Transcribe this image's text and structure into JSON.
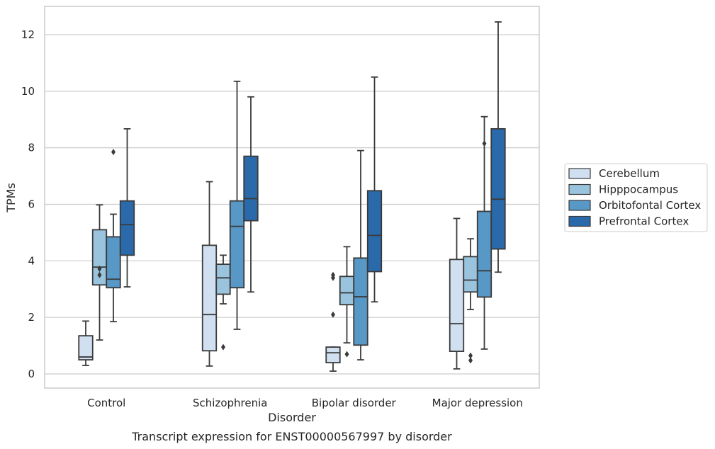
{
  "chart_data": {
    "type": "box",
    "title": "",
    "caption": "Transcript expression for ENST00000567997 by disorder",
    "xlabel": "Disorder",
    "ylabel": "TPMs",
    "ylim": [
      -0.5,
      13.0
    ],
    "yticks": [
      0,
      2,
      4,
      6,
      8,
      10,
      12
    ],
    "grid": "horizontal",
    "legend_position": "right",
    "categories": [
      "Control",
      "Schizophrenia",
      "Bipolar disorder",
      "Major depression"
    ],
    "series": [
      {
        "name": "Cerebellum",
        "color": "#d0e0f0",
        "boxes": [
          {
            "whisker_low": 0.3,
            "q1": 0.5,
            "median": 0.6,
            "q3": 1.35,
            "whisker_high": 1.87,
            "outliers": []
          },
          {
            "whisker_low": 0.28,
            "q1": 0.82,
            "median": 2.1,
            "q3": 4.55,
            "whisker_high": 6.8,
            "outliers": []
          },
          {
            "whisker_low": 0.1,
            "q1": 0.4,
            "median": 0.75,
            "q3": 0.95,
            "whisker_high": 0.95,
            "outliers": [
              2.1,
              3.4,
              3.5
            ]
          },
          {
            "whisker_low": 0.18,
            "q1": 0.8,
            "median": 1.78,
            "q3": 4.05,
            "whisker_high": 5.5,
            "outliers": []
          }
        ]
      },
      {
        "name": "Hipppocampus",
        "color": "#9ac3dd",
        "boxes": [
          {
            "whisker_low": 1.2,
            "q1": 3.15,
            "median": 3.78,
            "q3": 5.1,
            "whisker_high": 5.98,
            "outliers": [
              3.5,
              3.72
            ]
          },
          {
            "whisker_low": 2.48,
            "q1": 2.82,
            "median": 3.4,
            "q3": 3.88,
            "whisker_high": 4.2,
            "outliers": [
              0.95
            ]
          },
          {
            "whisker_low": 1.1,
            "q1": 2.45,
            "median": 2.87,
            "q3": 3.45,
            "whisker_high": 4.5,
            "outliers": [
              0.7
            ]
          },
          {
            "whisker_low": 2.28,
            "q1": 2.9,
            "median": 3.32,
            "q3": 4.15,
            "whisker_high": 4.78,
            "outliers": [
              0.48,
              0.65
            ]
          }
        ]
      },
      {
        "name": "Orbitofontal Cortex",
        "color": "#5898c6",
        "boxes": [
          {
            "whisker_low": 1.85,
            "q1": 3.05,
            "median": 3.35,
            "q3": 4.85,
            "whisker_high": 5.65,
            "outliers": [
              7.85
            ]
          },
          {
            "whisker_low": 1.58,
            "q1": 3.05,
            "median": 5.22,
            "q3": 6.12,
            "whisker_high": 10.35,
            "outliers": []
          },
          {
            "whisker_low": 0.5,
            "q1": 1.02,
            "median": 2.73,
            "q3": 4.1,
            "whisker_high": 7.9,
            "outliers": []
          },
          {
            "whisker_low": 0.88,
            "q1": 2.72,
            "median": 3.65,
            "q3": 5.75,
            "whisker_high": 9.1,
            "outliers": [
              8.15
            ]
          }
        ]
      },
      {
        "name": "Prefrontal Cortex",
        "color": "#2a6aab",
        "boxes": [
          {
            "whisker_low": 3.08,
            "q1": 4.2,
            "median": 5.28,
            "q3": 6.12,
            "whisker_high": 8.67,
            "outliers": []
          },
          {
            "whisker_low": 2.9,
            "q1": 5.42,
            "median": 6.2,
            "q3": 7.7,
            "whisker_high": 9.8,
            "outliers": []
          },
          {
            "whisker_low": 2.55,
            "q1": 3.62,
            "median": 4.9,
            "q3": 6.48,
            "whisker_high": 10.5,
            "outliers": []
          },
          {
            "whisker_low": 3.6,
            "q1": 4.42,
            "median": 6.18,
            "q3": 8.67,
            "whisker_high": 12.45,
            "outliers": []
          }
        ]
      }
    ]
  }
}
